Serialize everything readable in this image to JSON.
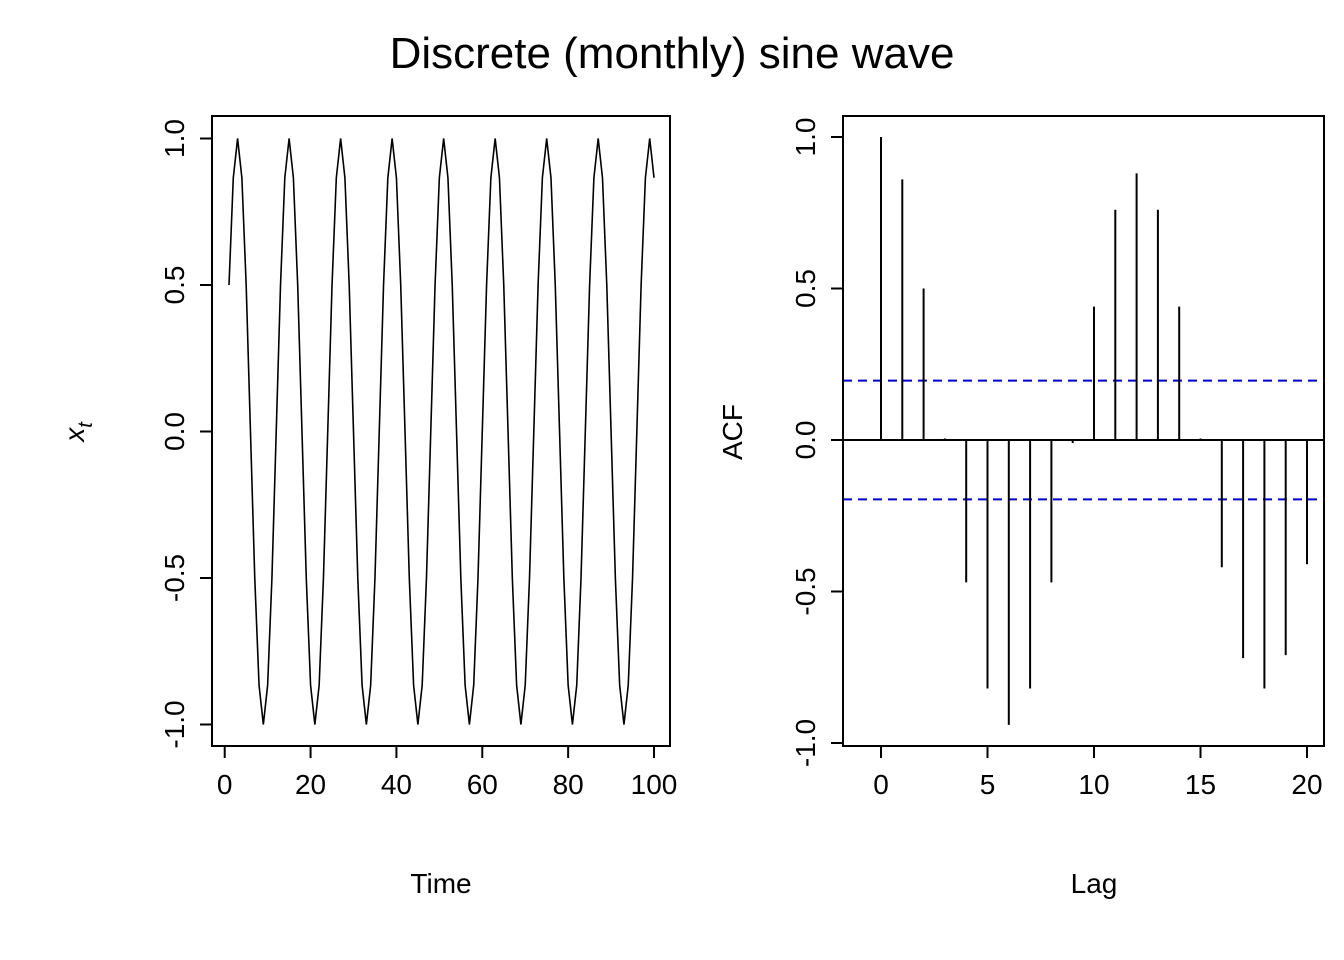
{
  "title": "Discrete (monthly) sine wave",
  "chart_data": [
    {
      "type": "line",
      "xlabel": "Time",
      "ylabel_main": "x",
      "ylabel_sub": "t",
      "xlim": [
        1,
        100
      ],
      "ylim": [
        -1.0,
        1.0
      ],
      "x_ticks": [
        0,
        20,
        40,
        60,
        80,
        100
      ],
      "x_tick_labels": [
        "0",
        "20",
        "40",
        "60",
        "80",
        "100"
      ],
      "y_ticks": [
        -1.0,
        -0.5,
        0.0,
        0.5,
        1.0
      ],
      "y_tick_labels": [
        "-1.0",
        "-0.5",
        "0.0",
        "0.5",
        "1.0"
      ],
      "series": [
        {
          "x": [
            1,
            2,
            3,
            4,
            5,
            6,
            7,
            8,
            9,
            10,
            11,
            12,
            13,
            14,
            15,
            16,
            17,
            18,
            19,
            20,
            21,
            22,
            23,
            24,
            25,
            26,
            27,
            28,
            29,
            30,
            31,
            32,
            33,
            34,
            35,
            36,
            37,
            38,
            39,
            40,
            41,
            42,
            43,
            44,
            45,
            46,
            47,
            48,
            49,
            50,
            51,
            52,
            53,
            54,
            55,
            56,
            57,
            58,
            59,
            60,
            61,
            62,
            63,
            64,
            65,
            66,
            67,
            68,
            69,
            70,
            71,
            72,
            73,
            74,
            75,
            76,
            77,
            78,
            79,
            80,
            81,
            82,
            83,
            84,
            85,
            86,
            87,
            88,
            89,
            90,
            91,
            92,
            93,
            94,
            95,
            96,
            97,
            98,
            99,
            100
          ],
          "values": [
            0.5,
            0.866,
            1.0,
            0.866,
            0.5,
            0.0,
            -0.5,
            -0.866,
            -1.0,
            -0.866,
            -0.5,
            0.0,
            0.5,
            0.866,
            1.0,
            0.866,
            0.5,
            0.0,
            -0.5,
            -0.866,
            -1.0,
            -0.866,
            -0.5,
            0.0,
            0.5,
            0.866,
            1.0,
            0.866,
            0.5,
            0.0,
            -0.5,
            -0.866,
            -1.0,
            -0.866,
            -0.5,
            0.0,
            0.5,
            0.866,
            1.0,
            0.866,
            0.5,
            0.0,
            -0.5,
            -0.866,
            -1.0,
            -0.866,
            -0.5,
            0.0,
            0.5,
            0.866,
            1.0,
            0.866,
            0.5,
            0.0,
            -0.5,
            -0.866,
            -1.0,
            -0.866,
            -0.5,
            0.0,
            0.5,
            0.866,
            1.0,
            0.866,
            0.5,
            0.0,
            -0.5,
            -0.866,
            -1.0,
            -0.866,
            -0.5,
            0.0,
            0.5,
            0.866,
            1.0,
            0.866,
            0.5,
            0.0,
            -0.5,
            -0.866,
            -1.0,
            -0.866,
            -0.5,
            0.0,
            0.5,
            0.866,
            1.0,
            0.866,
            0.5,
            0.0,
            -0.5,
            -0.866,
            -1.0,
            -0.866,
            -0.5,
            0.0,
            0.5,
            0.866,
            1.0,
            0.866
          ]
        }
      ]
    },
    {
      "type": "bar",
      "xlabel": "Lag",
      "ylabel": "ACF",
      "xlim": [
        0,
        20
      ],
      "ylim": [
        -1.0,
        1.0
      ],
      "x_ticks": [
        0,
        5,
        10,
        15,
        20
      ],
      "x_tick_labels": [
        "0",
        "5",
        "10",
        "15",
        "20"
      ],
      "y_ticks": [
        -1.0,
        -0.5,
        0.0,
        0.5,
        1.0
      ],
      "y_tick_labels": [
        "-1.0",
        "-0.5",
        "0.0",
        "0.5",
        "1.0"
      ],
      "categories": [
        0,
        1,
        2,
        3,
        4,
        5,
        6,
        7,
        8,
        9,
        10,
        11,
        12,
        13,
        14,
        15,
        16,
        17,
        18,
        19,
        20
      ],
      "values": [
        1.0,
        0.86,
        0.5,
        0.005,
        -0.47,
        -0.82,
        -0.94,
        -0.82,
        -0.47,
        -0.01,
        0.44,
        0.76,
        0.88,
        0.76,
        0.44,
        0.005,
        -0.42,
        -0.72,
        -0.82,
        -0.71,
        -0.41
      ],
      "confidence_band": 0.196,
      "colors": {
        "spikes": "#000000",
        "confidence_band": "#0000cc"
      }
    }
  ]
}
